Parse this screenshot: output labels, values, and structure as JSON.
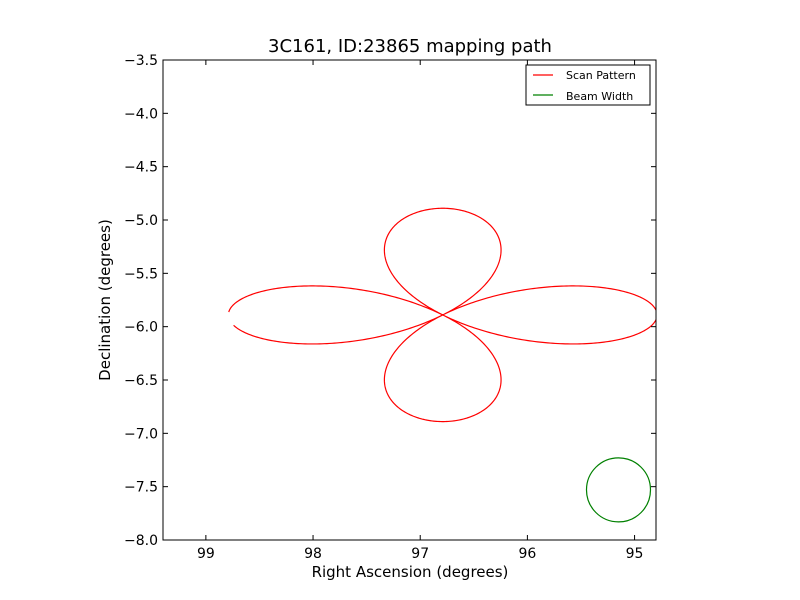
{
  "chart_data": {
    "type": "line",
    "title": "3C161, ID:23865 mapping path",
    "xlabel": "Right Ascension (degrees)",
    "ylabel": "Declination (degrees)",
    "xlim": [
      99.4,
      94.8
    ],
    "ylim": [
      -8.0,
      -3.5
    ],
    "x_inverted": true,
    "xticks": [
      99,
      98,
      97,
      96,
      95
    ],
    "xtick_labels": [
      "99",
      "98",
      "97",
      "96",
      "95"
    ],
    "yticks": [
      -8.0,
      -7.5,
      -7.0,
      -6.5,
      -6.0,
      -5.5,
      -5.0,
      -4.5,
      -4.0,
      -3.5
    ],
    "ytick_labels": [
      "−8.0",
      "−7.5",
      "−7.0",
      "−6.5",
      "−6.0",
      "−5.5",
      "−5.0",
      "−4.5",
      "−4.0",
      "−3.5"
    ],
    "grid": false,
    "legend_position": "top-right",
    "series": [
      {
        "name": "Scan Pattern",
        "color": "#ff0000",
        "curve": "four-petal rose (scan path)",
        "center": [
          96.79,
          -5.89
        ],
        "petal_radius": 2.0,
        "start": [
          98.78,
          -5.98
        ],
        "end": [
          98.64,
          -5.55
        ]
      },
      {
        "name": "Beam Width",
        "color": "#008000",
        "curve": "circle",
        "center": [
          95.15,
          -7.53
        ],
        "radius": 0.3
      }
    ]
  }
}
